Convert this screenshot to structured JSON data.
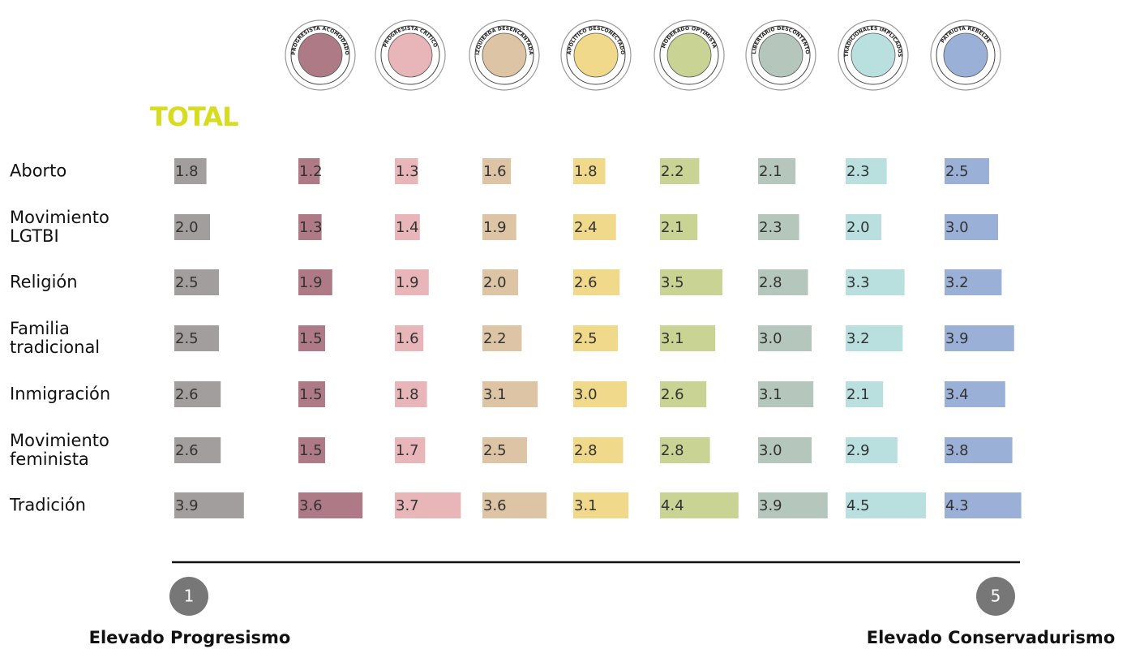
{
  "chart_data": {
    "type": "bar",
    "categories": [
      "Aborto",
      "Movimiento LGTBI",
      "Religión",
      "Familia tradicional",
      "Inmigración",
      "Movimiento feminista",
      "Tradición"
    ],
    "series": [
      {
        "name": "TOTAL",
        "color": "#a29e9d",
        "values": [
          1.8,
          2.0,
          2.5,
          2.5,
          2.6,
          2.6,
          3.9
        ],
        "value_labels": [
          "1.8",
          "2.0",
          "2.5",
          "2.5",
          "2.6",
          "2.6",
          "3.9"
        ]
      },
      {
        "name": "PROGRESISTA ACOMODADO",
        "color": "#ad7a86",
        "values": [
          1.2,
          1.3,
          1.9,
          1.5,
          1.5,
          1.5,
          3.6
        ],
        "value_labels": [
          "1.2",
          "1.3",
          "1.9",
          "1.5",
          "1.5",
          "1.5",
          "3.6"
        ]
      },
      {
        "name": "PROGRESISTA CRÍTICO",
        "color": "#e8b5b9",
        "values": [
          1.3,
          1.4,
          1.9,
          1.6,
          1.8,
          1.7,
          3.7
        ],
        "value_labels": [
          "1.3",
          "1.4",
          "1.9",
          "1.6",
          "1.8",
          "1.7",
          "3.7"
        ]
      },
      {
        "name": "IZQUIERDA DESENCANTADA",
        "color": "#dcc4a4",
        "values": [
          1.6,
          1.9,
          2.0,
          2.2,
          3.1,
          2.5,
          3.6
        ],
        "value_labels": [
          "1.6",
          "1.9",
          "2.0",
          "2.2",
          "3.1",
          "2.5",
          "3.6"
        ]
      },
      {
        "name": "APOLÍTICO DESCONECTADO",
        "color": "#f0d98b",
        "values": [
          1.8,
          2.4,
          2.6,
          2.5,
          3.0,
          2.8,
          3.1
        ],
        "value_labels": [
          "1.8",
          "2.4",
          "2.6",
          "2.5",
          "3.0",
          "2.8",
          "3.1"
        ]
      },
      {
        "name": "MODERADO OPTIMISTA",
        "color": "#c9d393",
        "values": [
          2.2,
          2.1,
          3.5,
          3.1,
          2.6,
          2.8,
          4.4
        ],
        "value_labels": [
          "2.2",
          "2.1",
          "3.5",
          "3.1",
          "2.6",
          "2.8",
          "4.4"
        ]
      },
      {
        "name": "LIBERTARIO DESCONTENTO",
        "color": "#b5c7bc",
        "values": [
          2.1,
          2.3,
          2.8,
          3.0,
          3.1,
          3.0,
          3.9
        ],
        "value_labels": [
          "2.1",
          "2.3",
          "2.8",
          "3.0",
          "3.1",
          "3.0",
          "3.9"
        ]
      },
      {
        "name": "TRADICIONALES IMPLICADOS",
        "color": "#b9dfdf",
        "values": [
          2.3,
          2.0,
          3.3,
          3.2,
          2.1,
          2.9,
          4.5
        ],
        "value_labels": [
          "2.3",
          "2.0",
          "3.3",
          "3.2",
          "2.1",
          "2.9",
          "4.5"
        ]
      },
      {
        "name": "PATRIOTA REBELDE",
        "color": "#9bb0d7",
        "values": [
          2.5,
          3.0,
          3.2,
          3.9,
          3.4,
          3.8,
          4.3
        ],
        "value_labels": [
          "2.5",
          "3.0",
          "3.2",
          "3.9",
          "3.4",
          "3.8",
          "4.3"
        ]
      }
    ],
    "scale": {
      "min": 1,
      "max": 5,
      "min_label": "Elevado Progresismo",
      "max_label": "Elevado Conservadurismo"
    }
  }
}
